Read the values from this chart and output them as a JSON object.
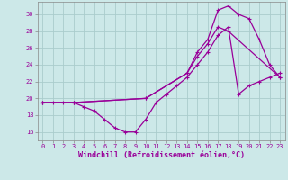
{
  "xlabel": "Windchill (Refroidissement éolien,°C)",
  "background_color": "#cce8e8",
  "grid_color": "#aacccc",
  "line_color": "#990099",
  "xlim": [
    -0.5,
    23.5
  ],
  "ylim": [
    15.0,
    31.5
  ],
  "yticks": [
    16,
    18,
    20,
    22,
    24,
    26,
    28,
    30
  ],
  "xticks": [
    0,
    1,
    2,
    3,
    4,
    5,
    6,
    7,
    8,
    9,
    10,
    11,
    12,
    13,
    14,
    15,
    16,
    17,
    18,
    19,
    20,
    21,
    22,
    23
  ],
  "series1_x": [
    0,
    1,
    2,
    3,
    4,
    5,
    6,
    7,
    8,
    9,
    10,
    11,
    12,
    13,
    14,
    15,
    16,
    17,
    18,
    19,
    20,
    21,
    22,
    23
  ],
  "series1_y": [
    19.5,
    19.5,
    19.5,
    19.5,
    19.0,
    18.5,
    17.5,
    16.5,
    16.0,
    16.0,
    17.5,
    19.5,
    20.5,
    21.5,
    22.5,
    24.0,
    25.5,
    27.5,
    28.5,
    20.5,
    21.5,
    22.0,
    22.5,
    23.0
  ],
  "series2_x": [
    0,
    3,
    10,
    14,
    15,
    16,
    17,
    18,
    19,
    20,
    21,
    22,
    23
  ],
  "series2_y": [
    19.5,
    19.5,
    20.0,
    23.0,
    25.5,
    27.0,
    30.5,
    31.0,
    30.0,
    29.5,
    27.0,
    24.0,
    22.5
  ],
  "series3_x": [
    0,
    3,
    10,
    14,
    15,
    16,
    17,
    18,
    23
  ],
  "series3_y": [
    19.5,
    19.5,
    20.0,
    23.0,
    25.0,
    26.5,
    28.5,
    28.0,
    22.5
  ],
  "xlabel_fontsize": 6,
  "tick_fontsize": 5,
  "linewidth": 0.9,
  "marker_size": 2.5
}
